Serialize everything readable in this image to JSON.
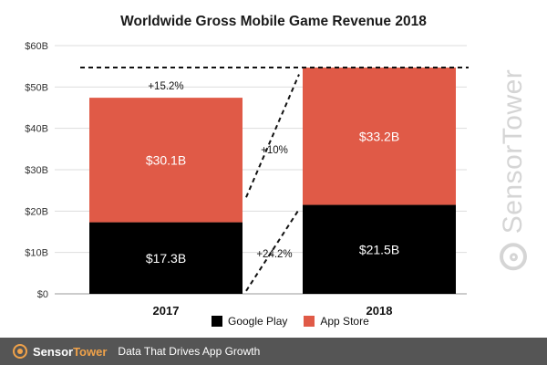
{
  "chart_data": {
    "type": "bar",
    "stacked": true,
    "title": "Worldwide Gross Mobile Game Revenue 2018",
    "categories": [
      "2017",
      "2018"
    ],
    "series": [
      {
        "name": "Google Play",
        "values": [
          17.3,
          21.5
        ],
        "labels": [
          "$17.3B",
          "$21.5B"
        ],
        "color": "#000000"
      },
      {
        "name": "App Store",
        "values": [
          30.1,
          33.2
        ],
        "labels": [
          "$30.1B",
          "$33.2B"
        ],
        "color": "#e05a47"
      }
    ],
    "ylim": [
      0,
      60
    ],
    "yticks": [
      0,
      10,
      20,
      30,
      40,
      50,
      60
    ],
    "ytick_labels": [
      "$0",
      "$10B",
      "$20B",
      "$30B",
      "$40B",
      "$50B",
      "$60B"
    ],
    "grid": true,
    "legend": "bottom",
    "annotations": {
      "total_growth": "+15.2%",
      "app_store_growth": "+10%",
      "google_play_growth": "+24.2%"
    }
  },
  "watermark": "SensorTower",
  "footer": {
    "brand_part1": "Sensor",
    "brand_part2": "Tower",
    "tagline": "Data That Drives App Growth"
  }
}
